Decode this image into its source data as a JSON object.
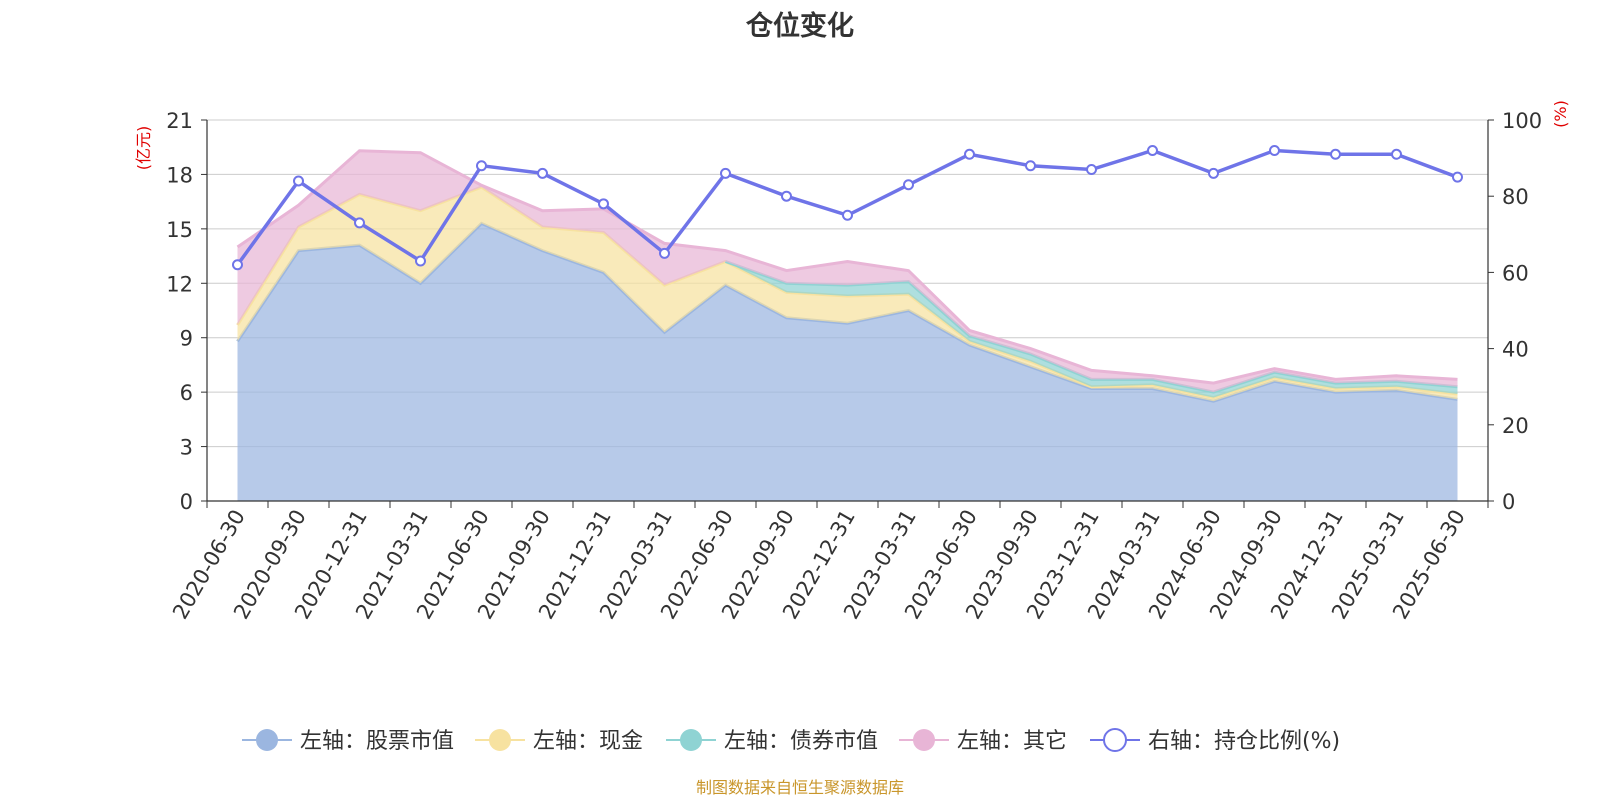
{
  "chart_data": {
    "type": "area",
    "title": "仓位变化",
    "left_axis_label": "(亿元)",
    "right_axis_label": "(%)",
    "left_ylim": [
      0,
      21
    ],
    "left_ticks": [
      0,
      3,
      6,
      9,
      12,
      15,
      18,
      21
    ],
    "right_ylim": [
      0,
      100
    ],
    "right_ticks": [
      0,
      20,
      40,
      60,
      80,
      100
    ],
    "grid": true,
    "legend_position": "bottom",
    "categories": [
      "2020-06-30",
      "2020-09-30",
      "2020-12-31",
      "2021-03-31",
      "2021-06-30",
      "2021-09-30",
      "2021-12-31",
      "2022-03-31",
      "2022-06-30",
      "2022-09-30",
      "2022-12-31",
      "2023-03-31",
      "2023-06-30",
      "2023-09-30",
      "2023-12-31",
      "2024-03-31",
      "2024-06-30",
      "2024-09-30",
      "2024-12-31",
      "2025-03-31",
      "2025-06-30"
    ],
    "stack_series": [
      {
        "name": "左轴：股票市值",
        "color": "#9bb6e0",
        "values": [
          8.8,
          13.8,
          14.1,
          12.0,
          15.3,
          13.8,
          12.6,
          9.3,
          11.9,
          10.1,
          9.8,
          10.5,
          8.6,
          7.4,
          6.2,
          6.2,
          5.5,
          6.6,
          6.0,
          6.1,
          5.6
        ]
      },
      {
        "name": "左轴：现金",
        "color": "#f7e2a0",
        "values": [
          0.9,
          1.3,
          2.8,
          4.0,
          2.0,
          1.3,
          2.2,
          2.6,
          1.3,
          1.4,
          1.5,
          0.9,
          0.2,
          0.3,
          0.1,
          0.2,
          0.2,
          0.2,
          0.2,
          0.2,
          0.3
        ]
      },
      {
        "name": "左轴：债券市值",
        "color": "#8fd3d3",
        "values": [
          0,
          0,
          0,
          0,
          0,
          0,
          0,
          0,
          0,
          0.5,
          0.6,
          0.7,
          0.3,
          0.4,
          0.4,
          0.3,
          0.3,
          0.3,
          0.3,
          0.3,
          0.4
        ]
      },
      {
        "name": "左轴：其它",
        "color": "#e8b5d6",
        "values": [
          4.3,
          1.2,
          2.4,
          3.2,
          0.1,
          0.9,
          1.3,
          2.3,
          0.6,
          0.7,
          1.3,
          0.6,
          0.3,
          0.3,
          0.5,
          0.2,
          0.5,
          0.2,
          0.2,
          0.3,
          0.4
        ]
      }
    ],
    "line_series": {
      "name": "右轴：持仓比例(%)",
      "color": "#6f74e8",
      "values": [
        62,
        84,
        73,
        63,
        88,
        86,
        78,
        65,
        86,
        80,
        75,
        83,
        91,
        88,
        87,
        92,
        86,
        92,
        91,
        91,
        85
      ]
    },
    "source_text": "制图数据来自恒生聚源数据库"
  }
}
